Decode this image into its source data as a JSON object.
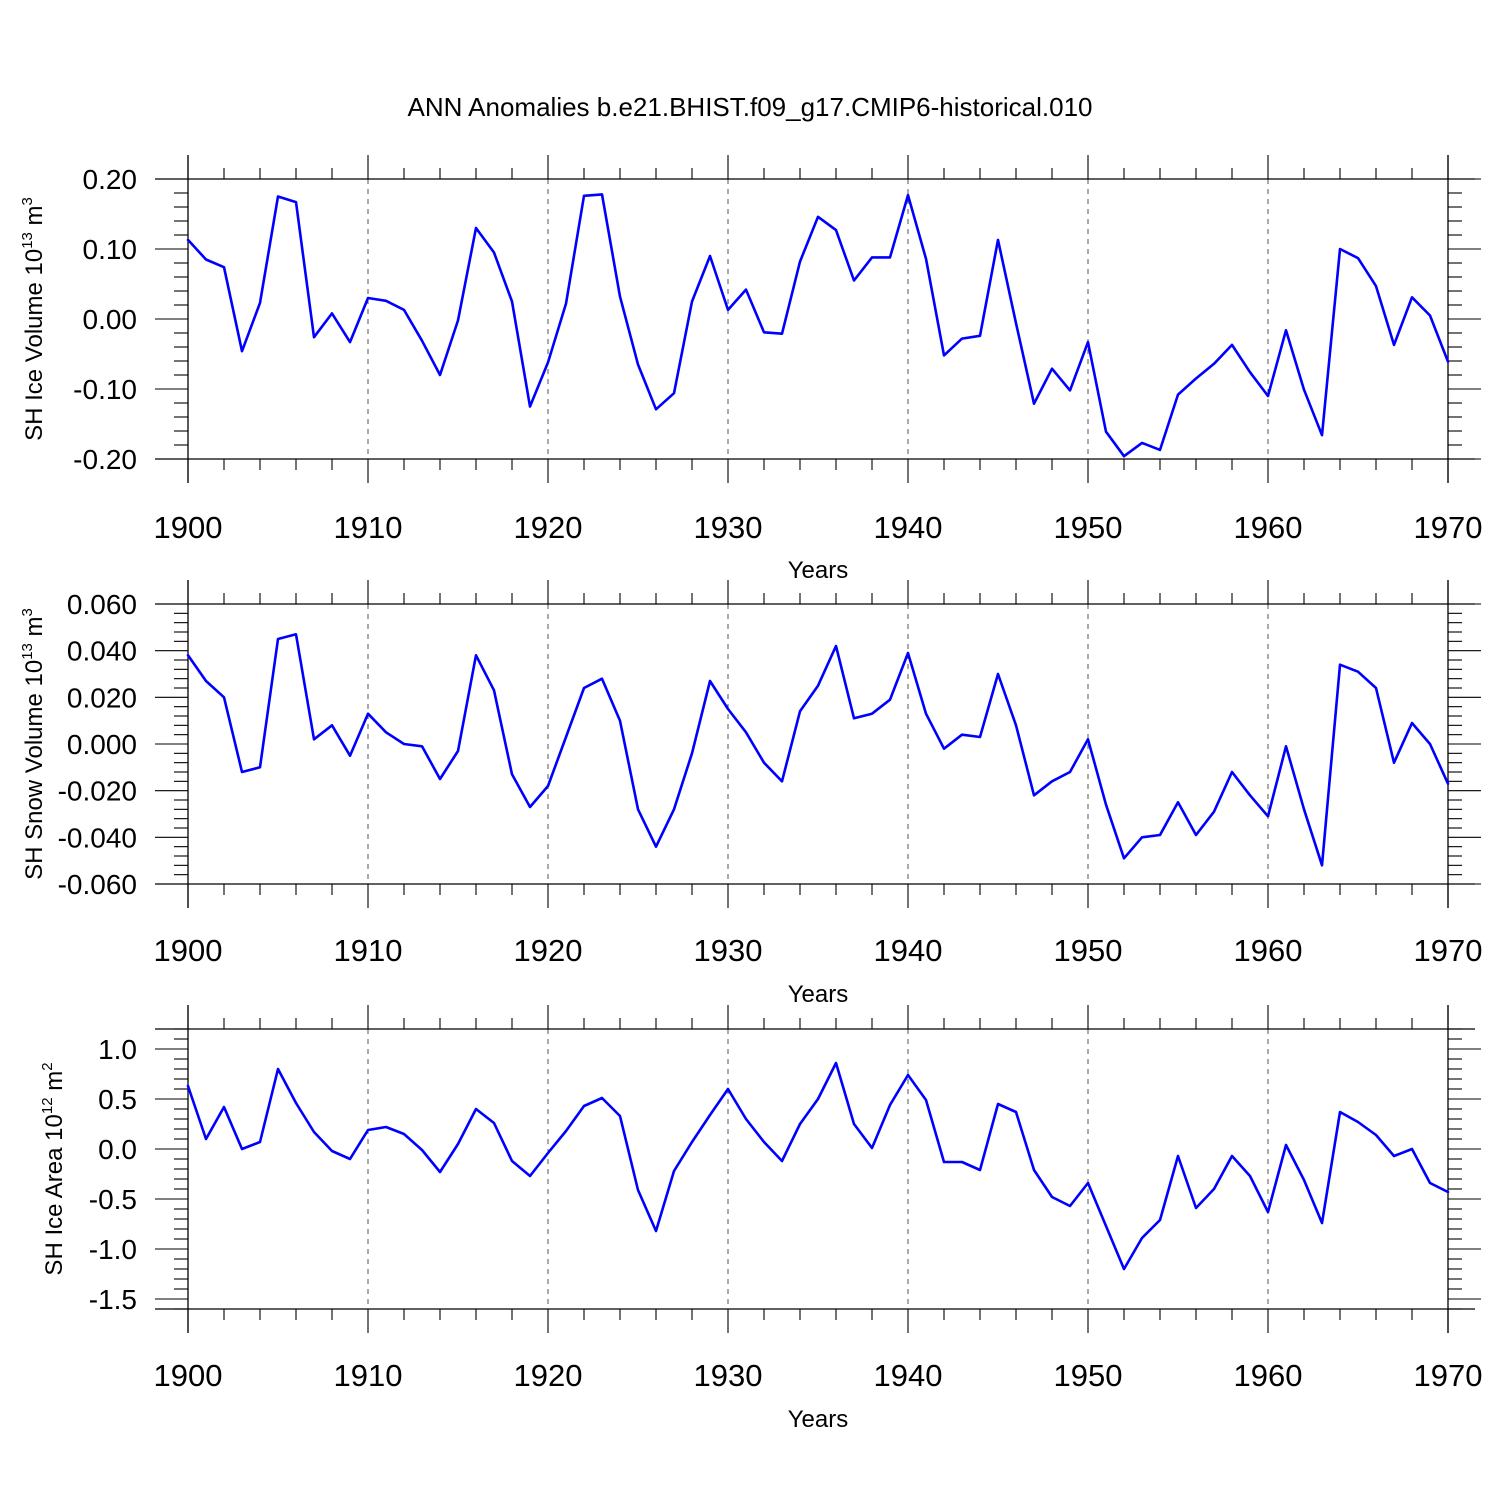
{
  "figure": {
    "title": "ANN Anomalies b.e21.BHIST.f09_g17.CMIP6-historical.010"
  },
  "chart_data": [
    {
      "type": "line",
      "name": "ice-volume",
      "title": "ANN Anomalies b.e21.BHIST.f09_g17.CMIP6-historical.010",
      "xlabel": "Years",
      "ylabel_prefix": "SH Ice Volume 10",
      "ylabel_exp": "13",
      "ylabel_unit": " m",
      "ylabel_unit_exp": "3",
      "xlim": [
        1900,
        1970
      ],
      "ylim": [
        -0.2,
        0.2
      ],
      "grid": "dashed vertical at major x ticks",
      "x_ticks": [
        1900,
        1910,
        1920,
        1930,
        1940,
        1950,
        1960,
        1970
      ],
      "x_tick_labels": [
        "1900",
        "1910",
        "1920",
        "1930",
        "1940",
        "1950",
        "1960",
        "1970"
      ],
      "y_ticks": [
        0.2,
        0.1,
        0.0,
        -0.1,
        -0.2
      ],
      "y_tick_labels": [
        "0.20",
        "0.10",
        "0.00",
        "-0.10",
        "-0.20"
      ],
      "series": [
        {
          "name": "SH Ice Volume",
          "color": "#0000ff",
          "x_start": 1900,
          "values": [
            0.113,
            0.085,
            0.074,
            -0.046,
            0.023,
            0.175,
            0.167,
            -0.026,
            0.008,
            -0.033,
            0.03,
            0.026,
            0.013,
            -0.031,
            -0.08,
            -0.002,
            0.13,
            0.095,
            0.025,
            -0.125,
            -0.062,
            0.022,
            0.176,
            0.178,
            0.032,
            -0.065,
            -0.129,
            -0.106,
            0.025,
            0.09,
            0.013,
            0.042,
            -0.019,
            -0.021,
            0.082,
            0.146,
            0.127,
            0.055,
            0.088,
            0.088,
            0.177,
            0.086,
            -0.052,
            -0.028,
            -0.024,
            0.113,
            -0.006,
            -0.121,
            -0.071,
            -0.102,
            -0.033,
            -0.161,
            -0.196,
            -0.177,
            -0.187,
            -0.108,
            -0.085,
            -0.064,
            -0.037,
            -0.076,
            -0.11,
            -0.016,
            -0.101,
            -0.166,
            0.1,
            0.087,
            0.047,
            -0.037,
            0.031,
            0.005,
            -0.061
          ]
        }
      ]
    },
    {
      "type": "line",
      "name": "snow-volume",
      "xlabel": "Years",
      "ylabel_prefix": "SH Snow Volume 10",
      "ylabel_exp": "13",
      "ylabel_unit": " m",
      "ylabel_unit_exp": "3",
      "xlim": [
        1900,
        1970
      ],
      "ylim": [
        -0.06,
        0.06
      ],
      "grid": "dashed vertical at major x ticks",
      "x_ticks": [
        1900,
        1910,
        1920,
        1930,
        1940,
        1950,
        1960,
        1970
      ],
      "x_tick_labels": [
        "1900",
        "1910",
        "1920",
        "1930",
        "1940",
        "1950",
        "1960",
        "1970"
      ],
      "y_ticks": [
        0.06,
        0.04,
        0.02,
        0.0,
        -0.02,
        -0.04,
        -0.06
      ],
      "y_tick_labels": [
        "0.060",
        "0.040",
        "0.020",
        "0.000",
        "-0.020",
        "-0.040",
        "-0.060"
      ],
      "series": [
        {
          "name": "SH Snow Volume",
          "color": "#0000ff",
          "x_start": 1900,
          "values": [
            0.038,
            0.027,
            0.02,
            -0.012,
            -0.01,
            0.045,
            0.047,
            0.002,
            0.008,
            -0.005,
            0.013,
            0.005,
            0.0,
            -0.001,
            -0.015,
            -0.003,
            0.038,
            0.023,
            -0.013,
            -0.027,
            -0.018,
            0.003,
            0.024,
            0.028,
            0.01,
            -0.028,
            -0.044,
            -0.028,
            -0.004,
            0.027,
            0.015,
            0.005,
            -0.008,
            -0.016,
            0.014,
            0.025,
            0.042,
            0.011,
            0.013,
            0.019,
            0.039,
            0.013,
            -0.002,
            0.004,
            0.003,
            0.03,
            0.008,
            -0.022,
            -0.016,
            -0.012,
            0.002,
            -0.026,
            -0.049,
            -0.04,
            -0.039,
            -0.025,
            -0.039,
            -0.029,
            -0.012,
            -0.022,
            -0.031,
            -0.001,
            -0.028,
            -0.052,
            0.034,
            0.031,
            0.024,
            -0.008,
            0.009,
            0.0,
            -0.017
          ]
        }
      ]
    },
    {
      "type": "line",
      "name": "ice-area",
      "xlabel": "Years",
      "ylabel_prefix": "SH Ice Area 10",
      "ylabel_exp": "12",
      "ylabel_unit": " m",
      "ylabel_unit_exp": "2",
      "xlim": [
        1900,
        1970
      ],
      "ylim": [
        -1.6,
        1.2
      ],
      "grid": "dashed vertical at major x ticks",
      "x_ticks": [
        1900,
        1910,
        1920,
        1930,
        1940,
        1950,
        1960,
        1970
      ],
      "x_tick_labels": [
        "1900",
        "1910",
        "1920",
        "1930",
        "1940",
        "1950",
        "1960",
        "1970"
      ],
      "y_ticks": [
        1.0,
        0.5,
        0.0,
        -0.5,
        -1.0,
        -1.5
      ],
      "y_tick_labels": [
        "1.0",
        "0.5",
        "0.0",
        "-0.5",
        "-1.0",
        "-1.5"
      ],
      "series": [
        {
          "name": "SH Ice Area",
          "color": "#0000ff",
          "x_start": 1900,
          "values": [
            0.63,
            0.1,
            0.42,
            0.0,
            0.07,
            0.8,
            0.46,
            0.17,
            -0.02,
            -0.1,
            0.19,
            0.22,
            0.15,
            -0.01,
            -0.23,
            0.05,
            0.4,
            0.26,
            -0.12,
            -0.27,
            -0.04,
            0.18,
            0.43,
            0.51,
            0.33,
            -0.41,
            -0.82,
            -0.22,
            0.07,
            0.34,
            0.6,
            0.3,
            0.07,
            -0.12,
            0.25,
            0.5,
            0.86,
            0.25,
            0.01,
            0.44,
            0.74,
            0.49,
            -0.13,
            -0.13,
            -0.21,
            0.45,
            0.37,
            -0.21,
            -0.48,
            -0.57,
            -0.34,
            -0.77,
            -1.2,
            -0.89,
            -0.71,
            -0.07,
            -0.59,
            -0.4,
            -0.07,
            -0.27,
            -0.63,
            0.04,
            -0.31,
            -0.74,
            0.37,
            0.27,
            0.14,
            -0.07,
            0.0,
            -0.34,
            -0.43
          ]
        }
      ]
    }
  ]
}
